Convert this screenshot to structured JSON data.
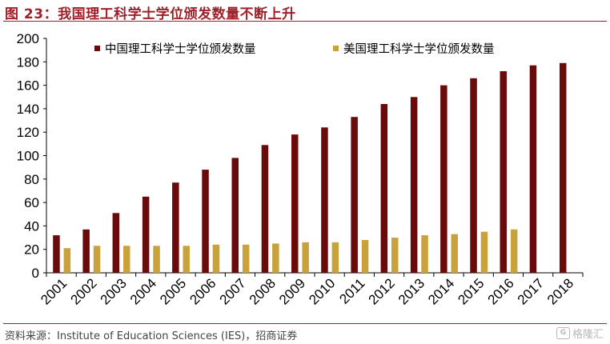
{
  "header": {
    "title": "图 23：我国理工科学士学位颁发数量不断上升"
  },
  "footer": {
    "source": "资料来源：Institute of Education Sciences (IES)，招商证券",
    "watermark": "格隆汇"
  },
  "colors": {
    "china": "#6b0a0a",
    "us": "#c9a23c",
    "accent": "#a0202a"
  },
  "chart_data": {
    "type": "bar",
    "title": "我国理工科学士学位颁发数量不断上升",
    "xlabel": "",
    "ylabel": "",
    "ylim": [
      0,
      200
    ],
    "yticks": [
      0,
      20,
      40,
      60,
      80,
      100,
      120,
      140,
      160,
      180,
      200
    ],
    "legend_position": "top",
    "categories": [
      "2001",
      "2002",
      "2003",
      "2004",
      "2005",
      "2006",
      "2007",
      "2008",
      "2009",
      "2010",
      "2011",
      "2012",
      "2013",
      "2014",
      "2015",
      "2016",
      "2017",
      "2018"
    ],
    "series": [
      {
        "name": "中国理工科学士学位颁发数量",
        "color_key": "china",
        "values": [
          32,
          37,
          51,
          65,
          77,
          88,
          98,
          109,
          118,
          124,
          133,
          144,
          150,
          160,
          166,
          172,
          177,
          179
        ]
      },
      {
        "name": "美国理工科学士学位颁发数量",
        "color_key": "us",
        "values": [
          21,
          23,
          23,
          23,
          23,
          24,
          24,
          25,
          26,
          26,
          28,
          30,
          32,
          33,
          35,
          37,
          null,
          null
        ]
      }
    ]
  }
}
